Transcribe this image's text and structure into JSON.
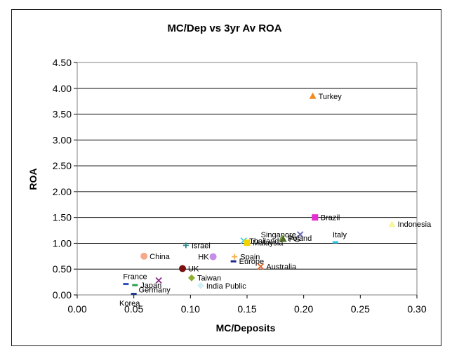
{
  "chart_data": {
    "type": "scatter",
    "title": "MC/Dep vs 3yr Av ROA",
    "xlabel": "MC/Deposits",
    "ylabel": "ROA",
    "xlim": [
      0,
      0.3
    ],
    "ylim": [
      0,
      4.5
    ],
    "x_ticks": [
      "0.00",
      "0.05",
      "0.10",
      "0.15",
      "0.20",
      "0.25",
      "0.30"
    ],
    "y_ticks": [
      "0.00",
      "0.50",
      "1.00",
      "1.50",
      "2.00",
      "2.50",
      "3.00",
      "3.50",
      "4.00",
      "4.50"
    ],
    "grid": "horizontal",
    "points": [
      {
        "label": "Turkey",
        "x": 0.208,
        "y": 3.85,
        "marker": "triangle",
        "color": "#F28C1E",
        "label_pos": "right"
      },
      {
        "label": "Brazil",
        "x": 0.21,
        "y": 1.5,
        "marker": "square",
        "color": "#E62DCF",
        "label_pos": "right"
      },
      {
        "label": "Indonesia",
        "x": 0.278,
        "y": 1.37,
        "marker": "triangle",
        "color": "#F5F59A",
        "label_pos": "right"
      },
      {
        "label": "Singapore",
        "x": 0.197,
        "y": 1.17,
        "marker": "x",
        "color": "#6A6AB0",
        "label_pos": "left"
      },
      {
        "label": "Italy",
        "x": 0.228,
        "y": 1.02,
        "marker": "dash",
        "color": "#29C4E8",
        "label_pos": "above"
      },
      {
        "label": "Poland",
        "x": 0.181,
        "y": 1.1,
        "marker": "triangle",
        "color": "#7A9E3A",
        "label_pos": "right"
      },
      {
        "label": "PG",
        "x": 0.182,
        "y": 1.08,
        "marker": "triangle",
        "color": "#4F6B2A",
        "label_pos": "right"
      },
      {
        "label": "Thailand",
        "x": 0.147,
        "y": 1.05,
        "marker": "x",
        "color": "#38D0F0",
        "label_pos": "right"
      },
      {
        "label": "Malaysia",
        "x": 0.15,
        "y": 1.01,
        "marker": "square",
        "color": "#F2D300",
        "label_pos": "right"
      },
      {
        "label": "Israel",
        "x": 0.096,
        "y": 0.96,
        "marker": "plus",
        "color": "#2A8A8A",
        "label_pos": "right"
      },
      {
        "label": "China",
        "x": 0.059,
        "y": 0.75,
        "marker": "circle",
        "color": "#F5A98A",
        "label_pos": "right"
      },
      {
        "label": "HK",
        "x": 0.12,
        "y": 0.74,
        "marker": "circle",
        "color": "#C38DE8",
        "label_pos": "left"
      },
      {
        "label": "Spain",
        "x": 0.139,
        "y": 0.74,
        "marker": "plus",
        "color": "#F0B050",
        "label_pos": "right"
      },
      {
        "label": "Europe",
        "x": 0.138,
        "y": 0.65,
        "marker": "dash",
        "color": "#1E2A8A",
        "label_pos": "right"
      },
      {
        "label": "Australia",
        "x": 0.162,
        "y": 0.55,
        "marker": "x",
        "color": "#E06020",
        "label_pos": "right"
      },
      {
        "label": "UK",
        "x": 0.093,
        "y": 0.51,
        "marker": "circle",
        "color": "#7A1010",
        "label_pos": "right"
      },
      {
        "label": "Taiwan",
        "x": 0.101,
        "y": 0.33,
        "marker": "diamond",
        "color": "#8CB030",
        "label_pos": "right"
      },
      {
        "label": "India Public",
        "x": 0.109,
        "y": 0.18,
        "marker": "diamond",
        "color": "#D0F0F8",
        "label_pos": "right"
      },
      {
        "label": "France",
        "x": 0.043,
        "y": 0.21,
        "marker": "dash",
        "color": "#3050C0",
        "label_pos": "above"
      },
      {
        "label": "Japan",
        "x": 0.051,
        "y": 0.19,
        "marker": "dash",
        "color": "#2AA050",
        "label_pos": "right"
      },
      {
        "label": "Germany",
        "x": 0.072,
        "y": 0.28,
        "marker": "x",
        "color": "#8A2A8A",
        "label_pos": "below"
      },
      {
        "label": "Korea",
        "x": 0.05,
        "y": 0.02,
        "marker": "dash",
        "color": "#1E3A8A",
        "label_pos": "below"
      }
    ]
  }
}
